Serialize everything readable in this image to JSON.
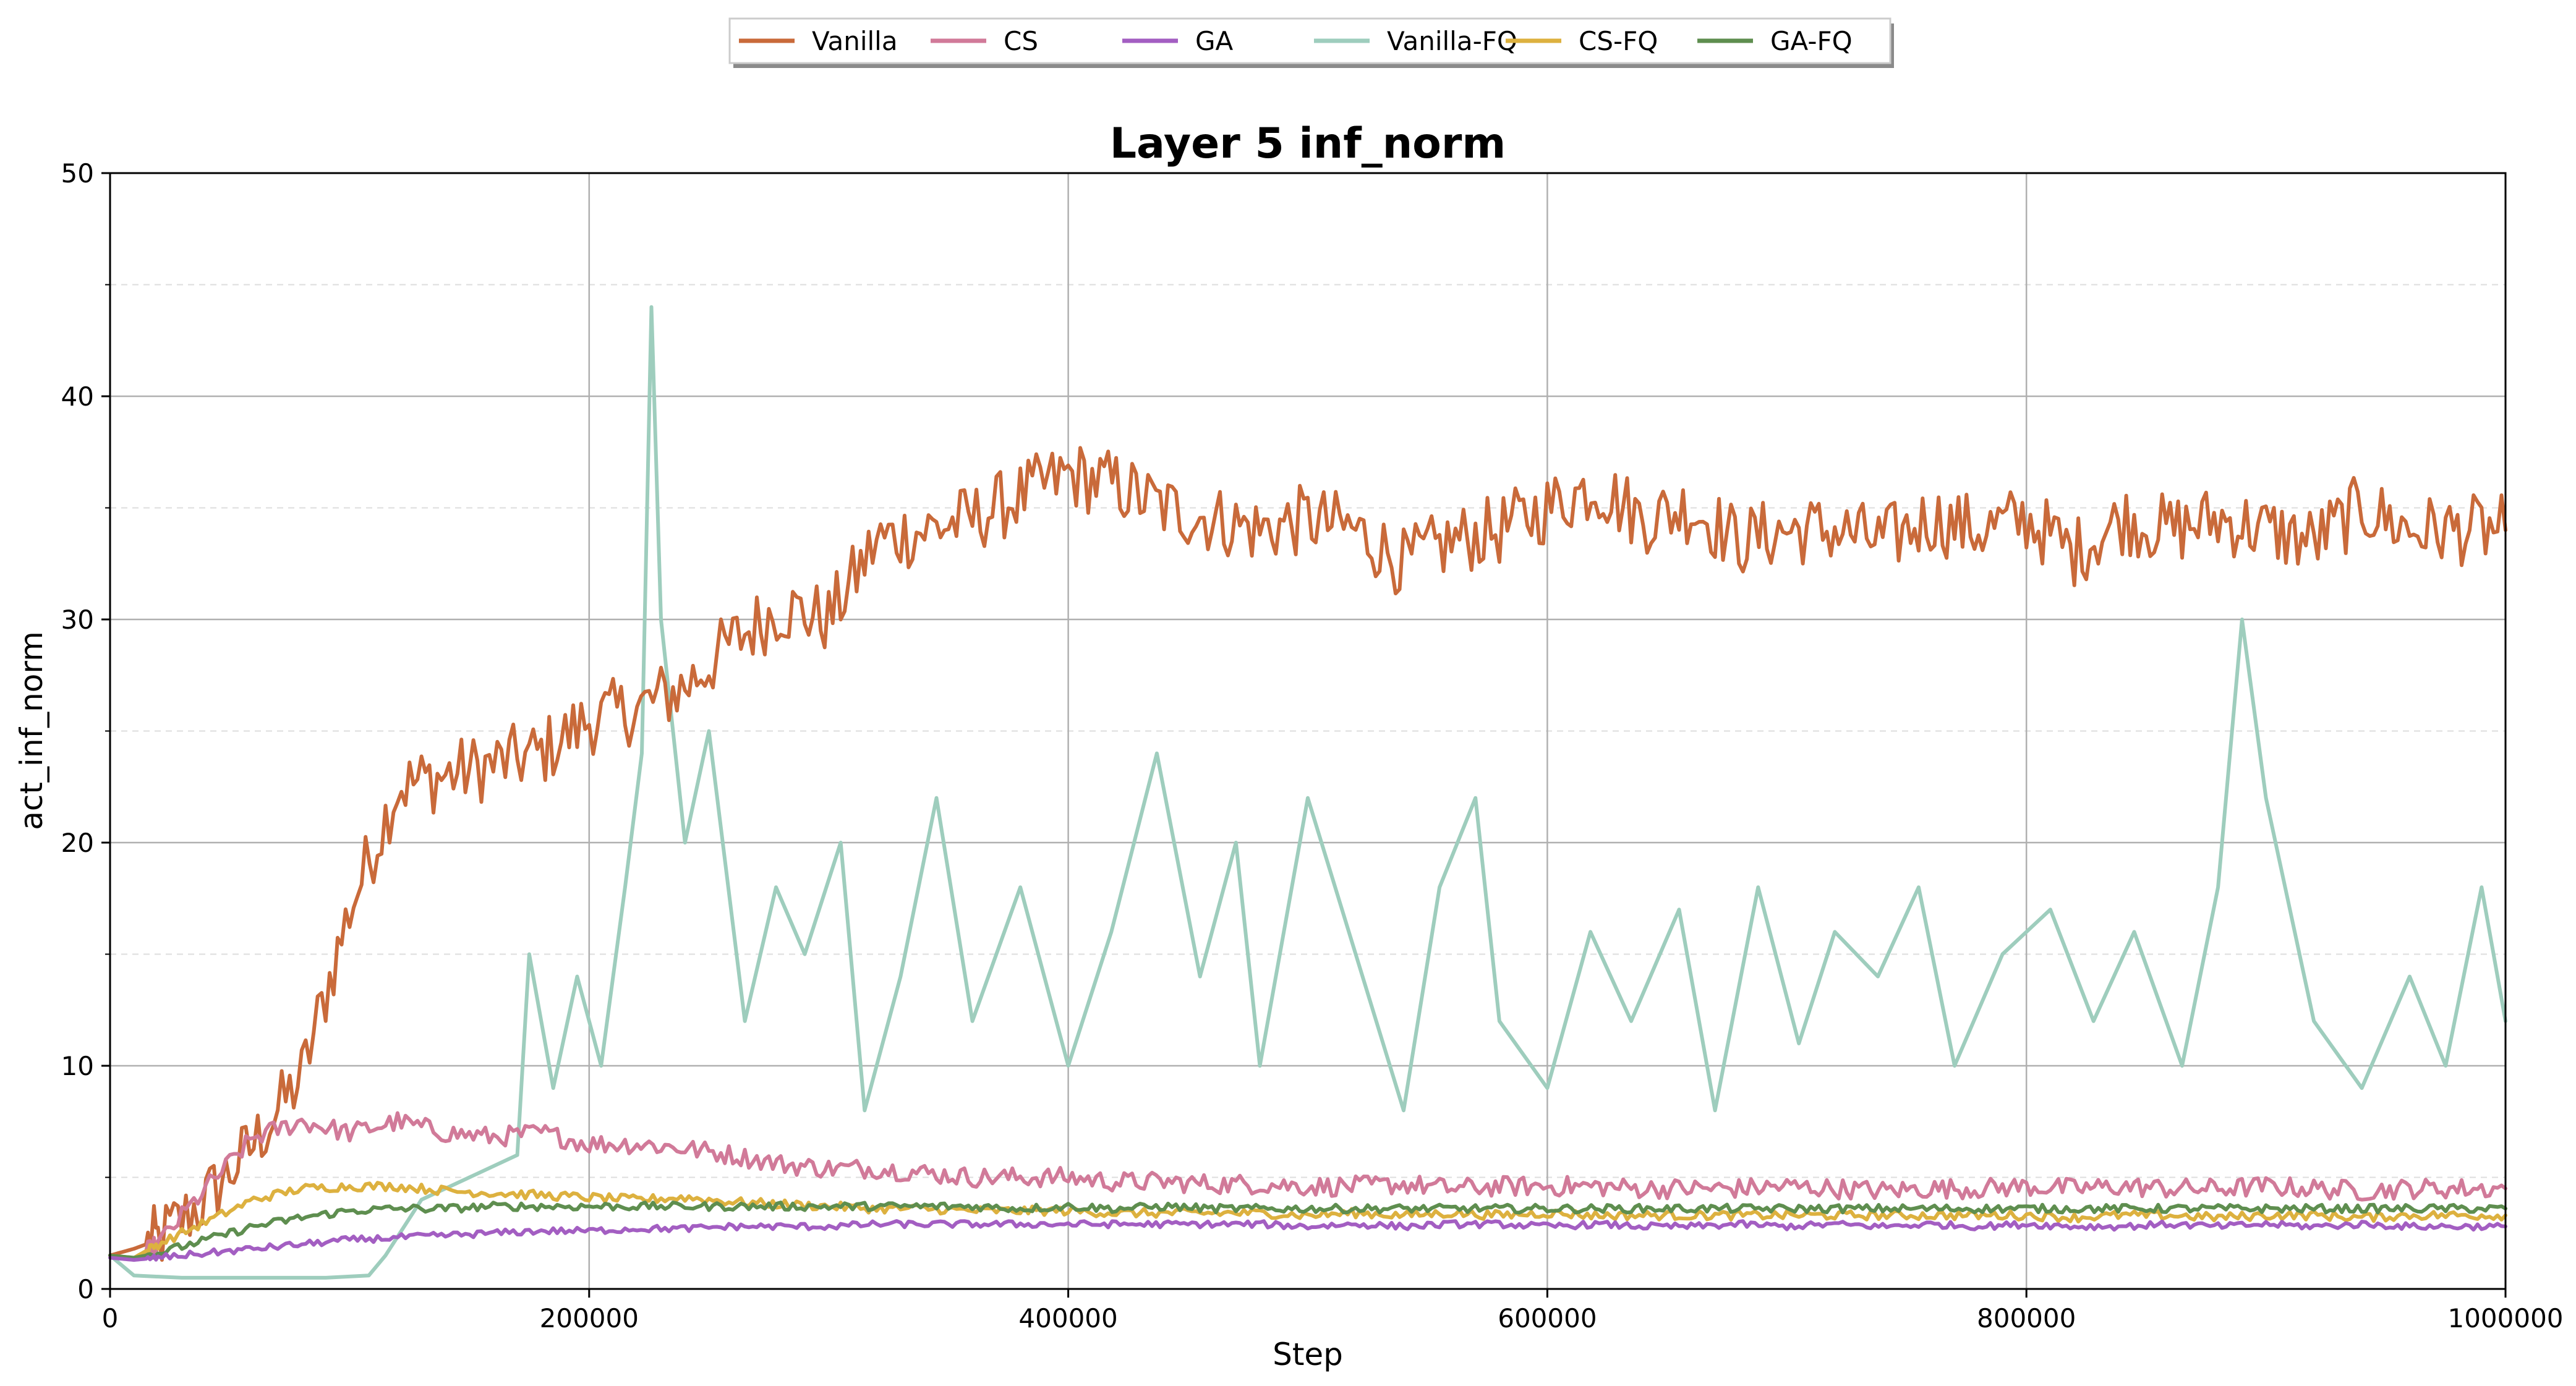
{
  "chart_data": {
    "type": "line",
    "title": "Layer 5 inf_norm",
    "xlabel": "Step",
    "ylabel": "act_inf_norm",
    "xlim": [
      0,
      1000000
    ],
    "ylim": [
      0,
      50
    ],
    "x_ticks": [
      0,
      200000,
      400000,
      600000,
      800000,
      1000000
    ],
    "x_tick_labels": [
      "0",
      "200000",
      "400000",
      "600000",
      "800000",
      "1000000"
    ],
    "y_ticks": [
      0,
      10,
      20,
      30,
      40,
      50
    ],
    "y_tick_labels": [
      "0",
      "10",
      "20",
      "30",
      "40",
      "50"
    ],
    "grid": true,
    "minor_grid_y": true,
    "legend_position": "top-center",
    "series": [
      {
        "name": "Vanilla",
        "color": "#C96A3A",
        "x": [
          0,
          10000,
          20000,
          40000,
          60000,
          80000,
          100000,
          120000,
          140000,
          160000,
          180000,
          200000,
          220000,
          240000,
          260000,
          280000,
          300000,
          320000,
          340000,
          360000,
          380000,
          400000,
          420000,
          440000,
          460000,
          480000,
          500000,
          520000,
          540000,
          560000,
          580000,
          600000,
          620000,
          640000,
          660000,
          680000,
          700000,
          720000,
          740000,
          760000,
          780000,
          800000,
          820000,
          840000,
          860000,
          880000,
          900000,
          920000,
          940000,
          960000,
          980000,
          1000000
        ],
        "values": [
          1.5,
          1.8,
          2.2,
          4.0,
          6.5,
          9.5,
          17.0,
          22.5,
          23.0,
          23.5,
          24.0,
          25.5,
          26.0,
          27.0,
          29.0,
          30.5,
          30.0,
          33.5,
          34.0,
          34.5,
          35.5,
          36.5,
          36.0,
          35.0,
          34.5,
          34.0,
          34.5,
          34.0,
          32.5,
          33.5,
          34.0,
          35.0,
          36.0,
          34.5,
          35.0,
          33.5,
          34.0,
          34.0,
          33.5,
          34.5,
          34.0,
          34.5,
          33.0,
          34.5,
          34.0,
          34.5,
          34.0,
          33.5,
          35.0,
          34.0,
          34.0,
          34.0
        ]
      },
      {
        "name": "CS",
        "color": "#D17A99",
        "x": [
          0,
          10000,
          20000,
          40000,
          60000,
          80000,
          100000,
          120000,
          140000,
          160000,
          180000,
          200000,
          220000,
          240000,
          260000,
          280000,
          300000,
          320000,
          340000,
          360000,
          380000,
          400000,
          420000,
          440000,
          460000,
          480000,
          500000,
          520000,
          540000,
          560000,
          580000,
          600000,
          620000,
          640000,
          660000,
          680000,
          700000,
          720000,
          740000,
          760000,
          780000,
          800000,
          820000,
          840000,
          860000,
          880000,
          900000,
          920000,
          940000,
          960000,
          980000,
          1000000
        ],
        "values": [
          1.5,
          1.3,
          2.0,
          4.5,
          6.8,
          7.5,
          7.0,
          7.5,
          7.0,
          6.8,
          7.0,
          6.5,
          6.5,
          6.3,
          6.0,
          5.6,
          5.4,
          5.4,
          5.2,
          5.0,
          5.0,
          5.0,
          4.8,
          4.8,
          4.7,
          4.7,
          4.6,
          4.6,
          4.7,
          4.5,
          4.6,
          4.6,
          4.6,
          4.5,
          4.5,
          4.5,
          4.6,
          4.5,
          4.4,
          4.5,
          4.5,
          4.6,
          4.5,
          4.6,
          4.5,
          4.5,
          4.6,
          4.5,
          4.4,
          4.5,
          4.5,
          4.5
        ]
      },
      {
        "name": "GA",
        "color": "#A35EC2",
        "x": [
          0,
          10000,
          20000,
          40000,
          60000,
          80000,
          100000,
          120000,
          140000,
          160000,
          180000,
          200000,
          220000,
          240000,
          260000,
          280000,
          300000,
          320000,
          340000,
          360000,
          380000,
          400000,
          420000,
          440000,
          460000,
          480000,
          500000,
          520000,
          540000,
          560000,
          580000,
          600000,
          620000,
          640000,
          660000,
          680000,
          700000,
          720000,
          740000,
          760000,
          780000,
          800000,
          820000,
          840000,
          860000,
          880000,
          900000,
          920000,
          940000,
          960000,
          980000,
          1000000
        ],
        "values": [
          1.4,
          1.3,
          1.4,
          1.6,
          1.8,
          2.0,
          2.2,
          2.3,
          2.4,
          2.5,
          2.6,
          2.6,
          2.7,
          2.7,
          2.8,
          2.8,
          2.8,
          2.9,
          2.9,
          2.9,
          2.9,
          2.9,
          2.9,
          2.9,
          2.9,
          2.9,
          2.8,
          2.9,
          2.8,
          2.9,
          2.9,
          2.8,
          2.9,
          2.8,
          2.8,
          2.9,
          2.8,
          2.9,
          2.8,
          2.9,
          2.8,
          2.9,
          2.8,
          2.8,
          2.9,
          2.8,
          2.9,
          2.8,
          2.9,
          2.8,
          2.8,
          2.8
        ]
      },
      {
        "name": "Vanilla-FQ",
        "color": "#9ECDBD",
        "x": [
          0,
          10000,
          30000,
          60000,
          90000,
          108000,
          115000,
          130000,
          150000,
          170000,
          175000,
          185000,
          195000,
          205000,
          215000,
          222000,
          226000,
          230000,
          240000,
          250000,
          265000,
          278000,
          290000,
          305000,
          315000,
          330000,
          345000,
          360000,
          380000,
          400000,
          418000,
          437000,
          455000,
          470000,
          480000,
          500000,
          520000,
          540000,
          555000,
          570000,
          580000,
          600000,
          618000,
          635000,
          655000,
          670000,
          688000,
          705000,
          720000,
          738000,
          755000,
          770000,
          790000,
          810000,
          828000,
          845000,
          865000,
          880000,
          890000,
          900000,
          920000,
          940000,
          960000,
          975000,
          990000,
          1000000
        ],
        "values": [
          1.5,
          0.6,
          0.5,
          0.5,
          0.5,
          0.6,
          1.5,
          4.0,
          5.0,
          6.0,
          15.0,
          9.0,
          14.0,
          10.0,
          18.0,
          24.0,
          44.0,
          30.0,
          20.0,
          25.0,
          12.0,
          18.0,
          15.0,
          20.0,
          8.0,
          14.0,
          22.0,
          12.0,
          18.0,
          10.0,
          16.0,
          24.0,
          14.0,
          20.0,
          10.0,
          22.0,
          15.0,
          8.0,
          18.0,
          22.0,
          12.0,
          9.0,
          16.0,
          12.0,
          17.0,
          8.0,
          18.0,
          11.0,
          16.0,
          14.0,
          18.0,
          10.0,
          15.0,
          17.0,
          12.0,
          16.0,
          10.0,
          18.0,
          30.0,
          22.0,
          12.0,
          9.0,
          14.0,
          10.0,
          18.0,
          12.0
        ]
      },
      {
        "name": "CS-FQ",
        "color": "#DDB13F",
        "x": [
          0,
          10000,
          20000,
          40000,
          60000,
          80000,
          100000,
          120000,
          140000,
          160000,
          180000,
          200000,
          220000,
          240000,
          260000,
          280000,
          300000,
          320000,
          340000,
          360000,
          380000,
          400000,
          420000,
          440000,
          460000,
          480000,
          500000,
          520000,
          540000,
          560000,
          580000,
          600000,
          620000,
          640000,
          660000,
          680000,
          700000,
          720000,
          740000,
          760000,
          780000,
          800000,
          820000,
          840000,
          860000,
          880000,
          900000,
          920000,
          940000,
          960000,
          980000,
          1000000
        ],
        "values": [
          1.5,
          1.4,
          2.0,
          3.0,
          4.0,
          4.5,
          4.6,
          4.6,
          4.4,
          4.3,
          4.2,
          4.1,
          4.0,
          4.1,
          3.9,
          3.8,
          3.7,
          3.6,
          3.6,
          3.5,
          3.5,
          3.5,
          3.4,
          3.4,
          3.4,
          3.4,
          3.3,
          3.4,
          3.3,
          3.4,
          3.3,
          3.4,
          3.3,
          3.3,
          3.3,
          3.3,
          3.3,
          3.3,
          3.3,
          3.3,
          3.3,
          3.3,
          3.2,
          3.3,
          3.3,
          3.2,
          3.3,
          3.3,
          3.2,
          3.3,
          3.3,
          3.3
        ]
      },
      {
        "name": "GA-FQ",
        "color": "#5E8E4F",
        "x": [
          0,
          10000,
          20000,
          40000,
          60000,
          80000,
          100000,
          120000,
          140000,
          160000,
          180000,
          200000,
          220000,
          240000,
          260000,
          280000,
          300000,
          320000,
          340000,
          360000,
          380000,
          400000,
          420000,
          440000,
          460000,
          480000,
          500000,
          520000,
          540000,
          560000,
          580000,
          600000,
          620000,
          640000,
          660000,
          680000,
          700000,
          720000,
          740000,
          760000,
          780000,
          800000,
          820000,
          840000,
          860000,
          880000,
          900000,
          920000,
          940000,
          960000,
          980000,
          1000000
        ],
        "values": [
          1.5,
          1.4,
          1.6,
          2.2,
          2.8,
          3.2,
          3.5,
          3.6,
          3.6,
          3.7,
          3.7,
          3.7,
          3.7,
          3.7,
          3.7,
          3.7,
          3.7,
          3.7,
          3.7,
          3.7,
          3.6,
          3.7,
          3.6,
          3.7,
          3.6,
          3.6,
          3.6,
          3.6,
          3.6,
          3.6,
          3.6,
          3.6,
          3.6,
          3.6,
          3.6,
          3.6,
          3.6,
          3.6,
          3.6,
          3.6,
          3.6,
          3.6,
          3.6,
          3.6,
          3.6,
          3.6,
          3.6,
          3.6,
          3.6,
          3.6,
          3.6,
          3.6
        ]
      }
    ]
  }
}
